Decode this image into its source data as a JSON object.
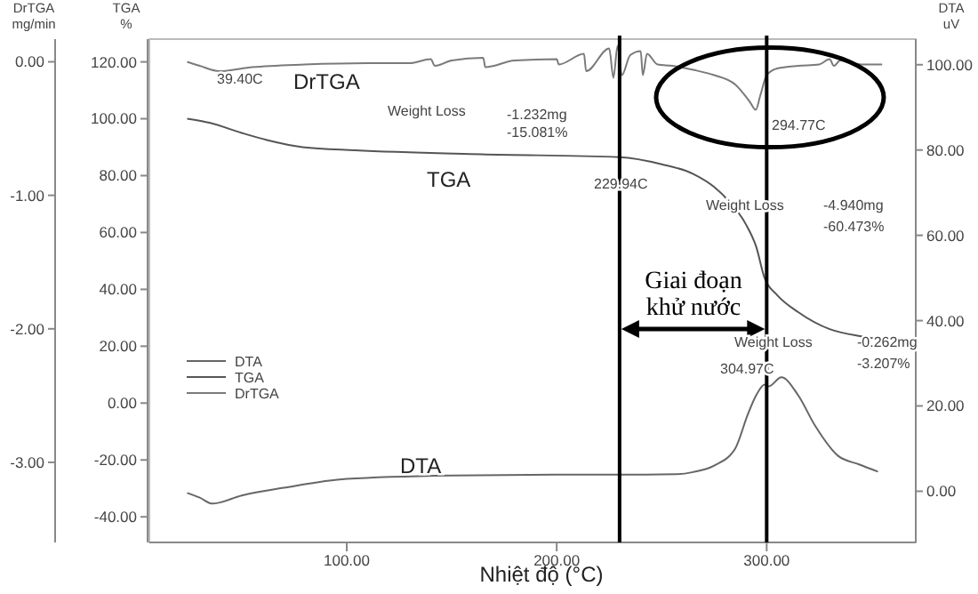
{
  "chart_data": {
    "type": "line",
    "xlabel": "Nhiệt độ (°C)",
    "ylabel": "TGA %",
    "y2label": "DTA uV",
    "y3label": "DrTGA mg/min",
    "xlim": [
      6,
      371
    ],
    "xticks": [
      {
        "value": 100,
        "label": "100.00"
      },
      {
        "value": 200,
        "label": "200.00"
      },
      {
        "value": 300,
        "label": "300.00"
      }
    ],
    "ylim": [
      -49,
      128
    ],
    "yticks": [
      {
        "value": -40,
        "label": "-40.00"
      },
      {
        "value": -20,
        "label": "-20.00"
      },
      {
        "value": 0,
        "label": "0.00"
      },
      {
        "value": 20,
        "label": "20.00"
      },
      {
        "value": 40,
        "label": "40.00"
      },
      {
        "value": 60,
        "label": "60.00"
      },
      {
        "value": 80,
        "label": "80.00"
      },
      {
        "value": 100,
        "label": "100.00"
      },
      {
        "value": 120,
        "label": "120.00"
      }
    ],
    "y2lim": [
      -12,
      106
    ],
    "y2ticks": [
      {
        "value": 0,
        "label": "0.00"
      },
      {
        "value": 20,
        "label": "20.00"
      },
      {
        "value": 40,
        "label": "40.00"
      },
      {
        "value": 60,
        "label": "60.00"
      },
      {
        "value": 80,
        "label": "80.00"
      },
      {
        "value": 100,
        "label": "100.00"
      }
    ],
    "y3lim": [
      -3.6,
      0.17
    ],
    "y3ticks": [
      {
        "value": -3,
        "label": "-3.00"
      },
      {
        "value": -2,
        "label": "-2.00"
      },
      {
        "value": -1,
        "label": "-1.00"
      },
      {
        "value": 0,
        "label": "0.00"
      }
    ],
    "legend": "left",
    "grid": false,
    "marker": "none",
    "line_style": "solid",
    "series": [
      {
        "name": "DTA",
        "color": "#666666",
        "axis": "y2",
        "x": [
          24,
          30,
          36,
          50,
          70,
          100,
          150,
          200,
          230,
          257,
          265,
          275,
          285,
          291,
          295,
          299,
          301,
          307,
          315,
          323,
          334,
          344,
          353
        ],
        "values": [
          -0.4,
          -1.5,
          -2.9,
          -1,
          0.8,
          2.9,
          3.7,
          3.9,
          3.9,
          4,
          4.5,
          6,
          10,
          18,
          22.5,
          25,
          24.6,
          26.7,
          22.5,
          15.4,
          8.3,
          6.3,
          4.6
        ]
      },
      {
        "name": "TGA",
        "color": "#555555",
        "x": [
          24,
          35,
          50,
          62,
          79,
          104,
          164,
          230,
          250,
          265,
          275,
          282,
          290,
          295,
          299,
          305,
          315,
          330,
          345,
          354
        ],
        "values": [
          100,
          98.5,
          95,
          92.5,
          90,
          88.9,
          87.5,
          86.5,
          84,
          80.6,
          76,
          71,
          63,
          55,
          44,
          38,
          32,
          26,
          23.5,
          22.5
        ]
      },
      {
        "name": "DrTGA",
        "color": "#7a7a7a",
        "axis": "y3",
        "x": [
          24,
          30,
          39.4,
          55,
          80,
          110,
          130,
          140,
          142,
          150,
          165,
          166,
          180,
          200,
          201,
          213,
          214,
          225,
          227,
          229,
          231,
          235,
          240,
          241,
          243,
          248,
          255,
          265,
          275,
          285,
          292,
          294.77,
          297,
          300,
          305,
          315,
          325,
          330,
          332,
          335,
          345,
          355
        ],
        "values": [
          0,
          -0.03,
          -0.07,
          -0.04,
          -0.02,
          -0.01,
          -0.01,
          0.02,
          -0.03,
          0.01,
          0.03,
          -0.04,
          0.01,
          0.02,
          -0.02,
          0.06,
          -0.07,
          0.1,
          -0.12,
          0.12,
          -0.1,
          0.05,
          0.08,
          -0.1,
          0.06,
          -0.02,
          -0.03,
          -0.06,
          -0.1,
          -0.17,
          -0.3,
          -0.36,
          -0.25,
          -0.1,
          -0.05,
          -0.03,
          -0.02,
          0.02,
          -0.03,
          0.01,
          -0.02,
          -0.02
        ]
      }
    ],
    "ref_lines": [
      {
        "axis": "x",
        "value": 229.94,
        "color": "#000000"
      },
      {
        "axis": "x",
        "value": 300,
        "color": "#000000"
      }
    ],
    "annotations": [
      "39.40C",
      "DrTGA",
      "Weight Loss",
      "-1.232mg",
      "-15.081%",
      "294.77C",
      "TGA",
      "229.94C",
      "Weight Loss",
      "-4.940mg",
      "-60.473%",
      "Giai đoạn",
      "khử nước",
      "Weight Loss",
      "-0.262mg",
      "-3.207%",
      "304.97C",
      "DTA"
    ]
  }
}
